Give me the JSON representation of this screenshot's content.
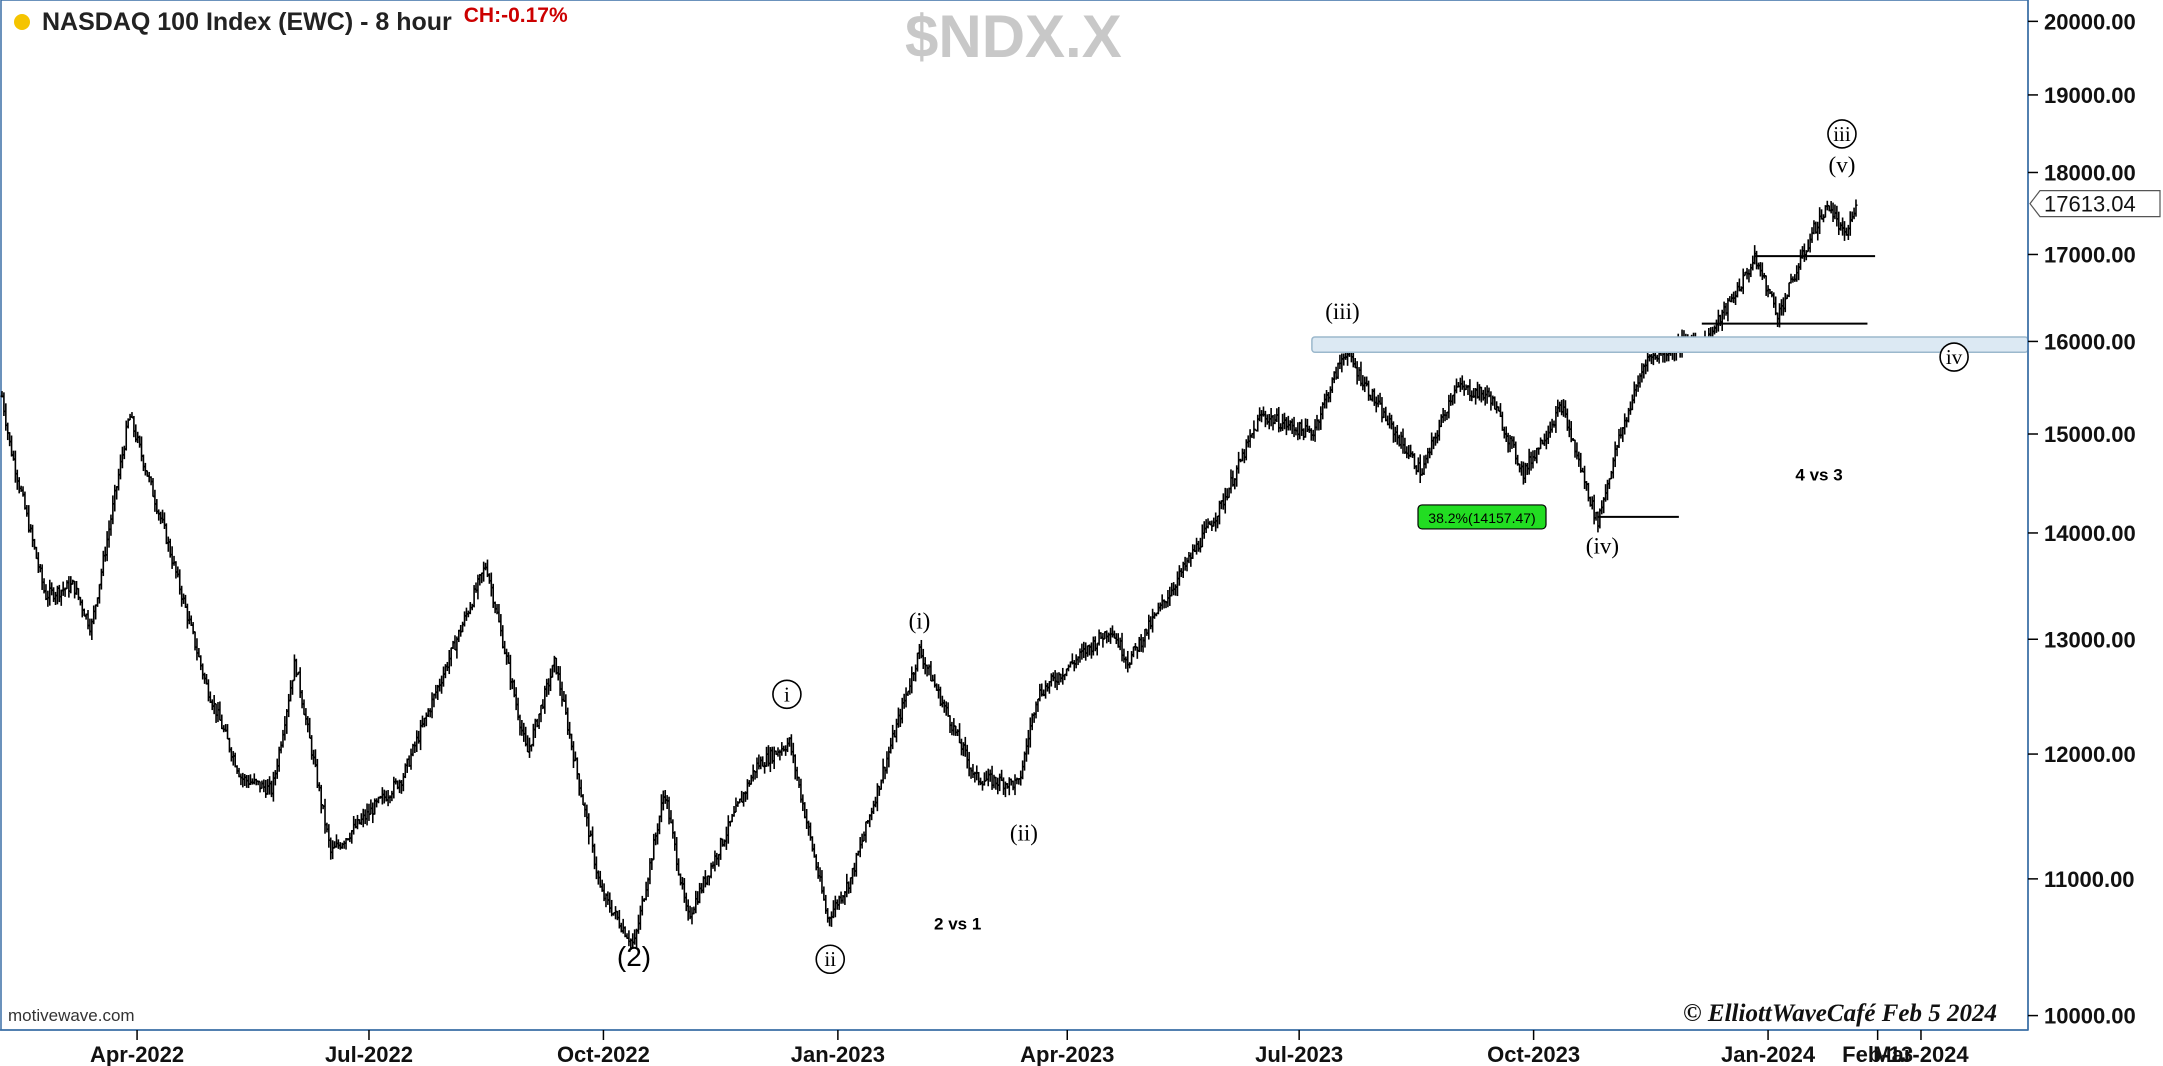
{
  "header": {
    "title": "NASDAQ 100 Index (EWC) - 8 hour",
    "change": "CH:-0.17%",
    "status_dot_color": "#f5c400"
  },
  "symbol_watermark": "$NDX.X",
  "footer": {
    "source": "motivewave.com",
    "copyright": "© ElliottWaveCafé Feb 5 2024"
  },
  "chart_data": {
    "type": "ohlc",
    "y_scale": "log",
    "ylim": [
      9900,
      20300
    ],
    "y_ticks": [
      "20000.00",
      "19000.00",
      "18000.00",
      "17000.00",
      "16000.00",
      "15000.00",
      "14000.00",
      "13000.00",
      "12000.00",
      "11000.00",
      "10000.00"
    ],
    "x_range": [
      "2022-02-07",
      "2024-04-12"
    ],
    "x_ticks": [
      {
        "date": "2022-04-01",
        "label": "Apr-2022"
      },
      {
        "date": "2022-07-01",
        "label": "Jul-2022"
      },
      {
        "date": "2022-10-01",
        "label": "Oct-2022"
      },
      {
        "date": "2023-01-01",
        "label": "Jan-2023"
      },
      {
        "date": "2023-04-01",
        "label": "Apr-2023"
      },
      {
        "date": "2023-07-01",
        "label": "Jul-2023"
      },
      {
        "date": "2023-10-01",
        "label": "Oct-2023"
      },
      {
        "date": "2024-01-01",
        "label": "Jan-2024"
      },
      {
        "date": "2024-02-13",
        "label": "Feb-13"
      },
      {
        "date": "2024-03-01",
        "label": "Mar-2024"
      }
    ],
    "last_price": "17613.04",
    "price_path": [
      [
        "2022-02-07",
        15400
      ],
      [
        "2022-02-10",
        14900
      ],
      [
        "2022-02-24",
        13400
      ],
      [
        "2022-03-07",
        13500
      ],
      [
        "2022-03-14",
        13100
      ],
      [
        "2022-03-29",
        15200
      ],
      [
        "2022-04-12",
        14000
      ],
      [
        "2022-04-28",
        12600
      ],
      [
        "2022-05-12",
        11800
      ],
      [
        "2022-05-24",
        11700
      ],
      [
        "2022-06-02",
        12800
      ],
      [
        "2022-06-16",
        11200
      ],
      [
        "2022-07-14",
        11800
      ],
      [
        "2022-08-01",
        12800
      ],
      [
        "2022-08-16",
        13700
      ],
      [
        "2022-09-01",
        12000
      ],
      [
        "2022-09-12",
        12800
      ],
      [
        "2022-09-30",
        10900
      ],
      [
        "2022-10-13",
        10500
      ],
      [
        "2022-10-25",
        11700
      ],
      [
        "2022-11-03",
        10700
      ],
      [
        "2022-11-30",
        11900
      ],
      [
        "2022-12-13",
        12100
      ],
      [
        "2022-12-28",
        10700
      ],
      [
        "2023-01-06",
        11000
      ],
      [
        "2023-02-02",
        12900
      ],
      [
        "2023-02-24",
        11800
      ],
      [
        "2023-03-13",
        11750
      ],
      [
        "2023-03-20",
        12500
      ],
      [
        "2023-04-18",
        13100
      ],
      [
        "2023-04-25",
        12800
      ],
      [
        "2023-05-31",
        14250
      ],
      [
        "2023-06-16",
        15200
      ],
      [
        "2023-07-06",
        15000
      ],
      [
        "2023-07-19",
        15900
      ],
      [
        "2023-08-03",
        15200
      ],
      [
        "2023-08-18",
        14600
      ],
      [
        "2023-08-31",
        15500
      ],
      [
        "2023-09-14",
        15400
      ],
      [
        "2023-09-27",
        14600
      ],
      [
        "2023-10-12",
        15300
      ],
      [
        "2023-10-26",
        14100
      ],
      [
        "2023-11-03",
        14900
      ],
      [
        "2023-11-14",
        15800
      ],
      [
        "2023-11-30",
        16000
      ],
      [
        "2023-12-08",
        16000
      ],
      [
        "2023-12-27",
        16950
      ],
      [
        "2024-01-05",
        16300
      ],
      [
        "2024-01-19",
        17300
      ],
      [
        "2024-01-25",
        17600
      ],
      [
        "2024-01-31",
        17200
      ],
      [
        "2024-02-05",
        17613
      ]
    ],
    "wave_labels": [
      {
        "label": "(2)",
        "date": "2022-10-13",
        "price": 10350,
        "style": "plain",
        "font": "sans",
        "size": 28
      },
      {
        "label": "i",
        "date": "2022-12-12",
        "price": 12450,
        "style": "circled",
        "font": "serif",
        "size": 21
      },
      {
        "label": "ii",
        "date": "2022-12-29",
        "price": 10350,
        "style": "circled",
        "font": "serif",
        "size": 21
      },
      {
        "label": "(i)",
        "date": "2023-02-02",
        "price": 13100,
        "style": "plain",
        "font": "serif",
        "size": 23
      },
      {
        "label": "(ii)",
        "date": "2023-03-15",
        "price": 11300,
        "style": "plain",
        "font": "serif",
        "size": 23
      },
      {
        "label": "(iii)",
        "date": "2023-07-18",
        "price": 16250,
        "style": "plain",
        "font": "serif",
        "size": 23
      },
      {
        "label": "(iv)",
        "date": "2023-10-28",
        "price": 13800,
        "style": "plain",
        "font": "serif",
        "size": 23
      },
      {
        "label": "(v)",
        "date": "2024-01-30",
        "price": 18000,
        "style": "plain",
        "font": "serif",
        "size": 23
      },
      {
        "label": "iii",
        "date": "2024-01-30",
        "price": 18400,
        "style": "circled",
        "font": "serif",
        "size": 21
      },
      {
        "label": "iv",
        "date": "2024-03-14",
        "price": 15750,
        "style": "circled",
        "font": "serif",
        "size": 21
      }
    ],
    "annotations": [
      {
        "text": "2 vs 1",
        "date": "2023-02-17",
        "price": 10620
      },
      {
        "text": "4 vs 3",
        "date": "2024-01-21",
        "price": 14520
      }
    ],
    "fib_box": {
      "text": "38.2%(14157.47)",
      "price": 14157.47,
      "color": "#22dd22"
    },
    "resistance_band": {
      "from_date": "2023-07-06",
      "to_date": "2024-04-12",
      "low": 15880,
      "high": 16050
    },
    "horizontal_lines": [
      {
        "from_date": "2023-12-06",
        "to_date": "2024-02-09",
        "price": 16200
      },
      {
        "from_date": "2023-12-27",
        "to_date": "2024-02-12",
        "price": 16980
      },
      {
        "from_date": "2023-10-26",
        "to_date": "2023-11-27",
        "price": 14157.47
      }
    ]
  }
}
